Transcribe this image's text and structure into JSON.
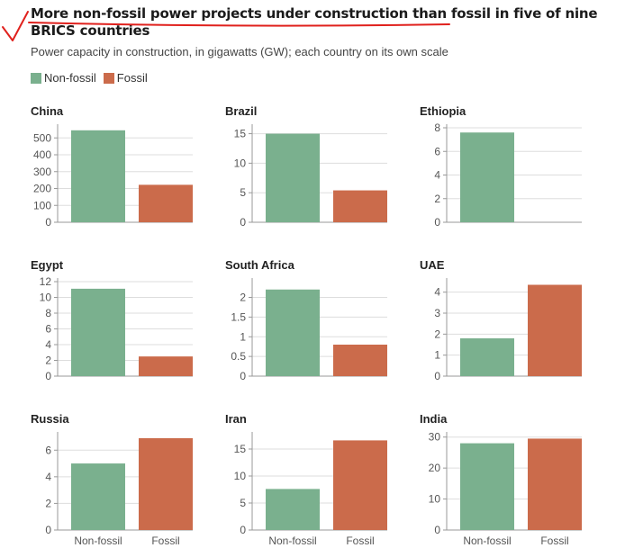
{
  "title": "More non-fossil power projects under construction than fossil in five of nine BRICS countries",
  "subtitle": "Power capacity in construction, in gigawatts (GW); each country on its own scale",
  "legend": [
    {
      "label": "Non-fossil",
      "color": "#7ab08e"
    },
    {
      "label": "Fossil",
      "color": "#cb6b4b"
    }
  ],
  "colors": {
    "annotation": "#e0211d",
    "grid": "#dddddd",
    "axis_text": "#555555"
  },
  "chart_data": [
    {
      "type": "bar",
      "title": "China",
      "categories": [
        "Non-fossil",
        "Fossil"
      ],
      "values": [
        545,
        222
      ],
      "ylim": [
        0,
        560
      ],
      "yticks": [
        0,
        100,
        200,
        300,
        400,
        500
      ],
      "show_xlabels": false
    },
    {
      "type": "bar",
      "title": "Brazil",
      "categories": [
        "Non-fossil",
        "Fossil"
      ],
      "values": [
        15,
        5.4
      ],
      "ylim": [
        0,
        16
      ],
      "yticks": [
        0,
        5,
        10,
        15
      ],
      "show_xlabels": false
    },
    {
      "type": "bar",
      "title": "Ethiopia",
      "categories": [
        "Non-fossil",
        "Fossil"
      ],
      "values": [
        7.6,
        0
      ],
      "ylim": [
        0,
        8
      ],
      "yticks": [
        0,
        2,
        4,
        6,
        8
      ],
      "show_xlabels": false
    },
    {
      "type": "bar",
      "title": "Egypt",
      "categories": [
        "Non-fossil",
        "Fossil"
      ],
      "values": [
        11.1,
        2.5
      ],
      "ylim": [
        0,
        12
      ],
      "yticks": [
        0,
        2,
        4,
        6,
        8,
        10,
        12
      ],
      "show_xlabels": false
    },
    {
      "type": "bar",
      "title": "South Africa",
      "categories": [
        "Non-fossil",
        "Fossil"
      ],
      "values": [
        2.2,
        0.8
      ],
      "ylim": [
        0,
        2.4
      ],
      "yticks": [
        0,
        0.5,
        1,
        1.5,
        2
      ],
      "show_xlabels": false
    },
    {
      "type": "bar",
      "title": "UAE",
      "categories": [
        "Non-fossil",
        "Fossil"
      ],
      "values": [
        1.8,
        4.35
      ],
      "ylim": [
        0,
        4.5
      ],
      "yticks": [
        0,
        1,
        2,
        3,
        4
      ],
      "show_xlabels": false
    },
    {
      "type": "bar",
      "title": "Russia",
      "categories": [
        "Non-fossil",
        "Fossil"
      ],
      "values": [
        5,
        6.9
      ],
      "ylim": [
        0,
        7.1
      ],
      "yticks": [
        0,
        2,
        4,
        6
      ],
      "show_xlabels": true
    },
    {
      "type": "bar",
      "title": "Iran",
      "categories": [
        "Non-fossil",
        "Fossil"
      ],
      "values": [
        7.6,
        16.6
      ],
      "ylim": [
        0,
        17.5
      ],
      "yticks": [
        0,
        5,
        10,
        15
      ],
      "show_xlabels": true
    },
    {
      "type": "bar",
      "title": "India",
      "categories": [
        "Non-fossil",
        "Fossil"
      ],
      "values": [
        28,
        29.5
      ],
      "ylim": [
        0,
        30.5
      ],
      "yticks": [
        0,
        10,
        20,
        30
      ],
      "show_xlabels": true
    }
  ]
}
